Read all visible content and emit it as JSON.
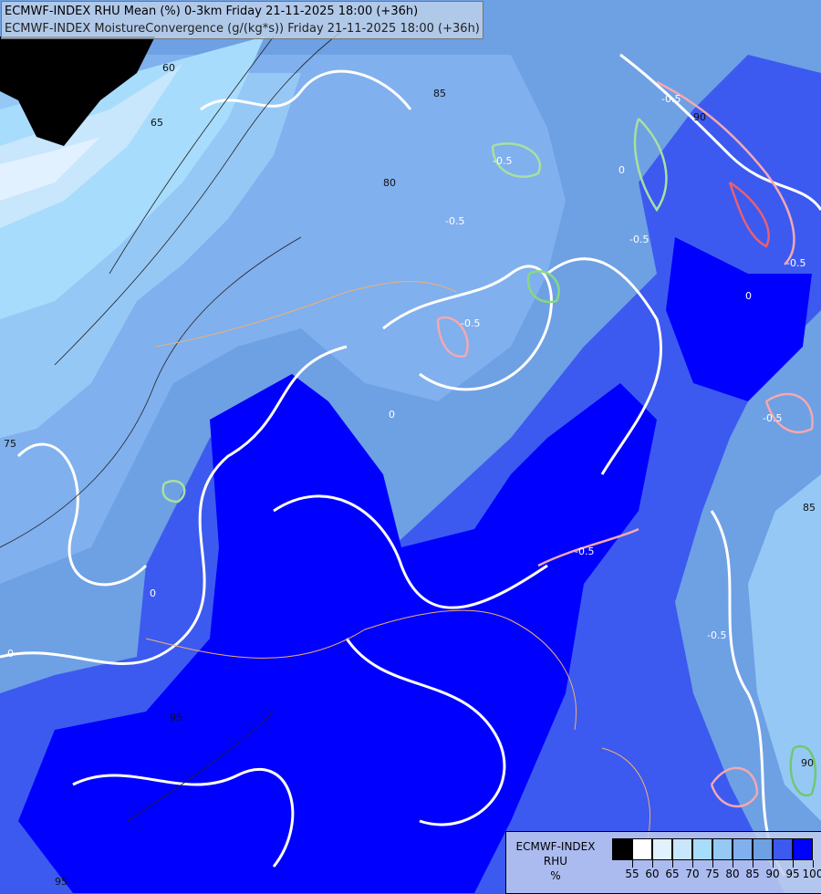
{
  "header": {
    "line1": "ECMWF-INDEX RHU Mean (%) 0-3km Friday 21-11-2025 18:00 (+36h)",
    "line2": "ECMWF-INDEX MoistureConvergence (g/(kg*s)) Friday 21-11-2025 18:00 (+36h)"
  },
  "legend": {
    "title_line1": "ECMWF-INDEX",
    "title_line2": "RHU",
    "unit": "%",
    "colors": [
      "#000000",
      "#ffffff",
      "#e2f1ff",
      "#c8e6fc",
      "#a8dcfc",
      "#96c8f6",
      "#80b0ee",
      "#6ea0e4",
      "#3c5af0",
      "#0000ff"
    ],
    "ticks": [
      "55",
      "60",
      "65",
      "70",
      "75",
      "80",
      "85",
      "90",
      "95",
      "100"
    ]
  },
  "contour_labels": {
    "rhu": [
      "60",
      "65",
      "85",
      "80",
      "75",
      "90",
      "95",
      "95",
      "85",
      "90"
    ],
    "convergence": [
      "-0.5",
      "-0.5",
      "-0.5",
      "-0.5",
      "-0.5",
      "-0.5",
      "-0.5",
      "-0.5",
      "-0.5",
      "0",
      "0",
      "0",
      "0",
      "0"
    ]
  }
}
